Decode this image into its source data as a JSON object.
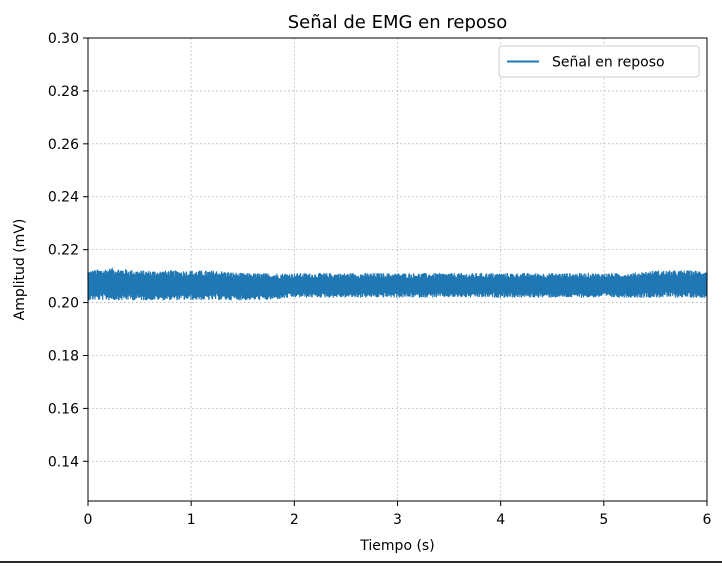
{
  "chart_data": {
    "type": "line",
    "title": "Señal de EMG en reposo",
    "xlabel": "Tiempo (s)",
    "ylabel": "Amplitud (mV)",
    "xlim": [
      0,
      6
    ],
    "ylim": [
      0.125,
      0.3
    ],
    "x_ticks": [
      0,
      1,
      2,
      3,
      4,
      5,
      6
    ],
    "y_ticks": [
      0.14,
      0.16,
      0.18,
      0.2,
      0.22,
      0.24,
      0.26,
      0.28,
      0.3
    ],
    "x_tick_labels": [
      "0",
      "1",
      "2",
      "3",
      "4",
      "5",
      "6"
    ],
    "y_tick_labels": [
      "0.14",
      "0.16",
      "0.18",
      "0.20",
      "0.22",
      "0.24",
      "0.26",
      "0.28",
      "0.30"
    ],
    "grid": true,
    "legend_position": "top-right",
    "series": [
      {
        "name": "Señal en reposo",
        "color": "#1f77b4",
        "x": [
          0.0,
          0.25,
          0.5,
          0.75,
          1.0,
          1.25,
          1.5,
          1.75,
          2.0,
          2.25,
          2.5,
          2.75,
          3.0,
          3.25,
          3.5,
          3.75,
          4.0,
          4.25,
          4.5,
          4.75,
          5.0,
          5.25,
          5.5,
          5.75,
          6.0
        ],
        "y_max": [
          0.212,
          0.213,
          0.212,
          0.212,
          0.212,
          0.212,
          0.211,
          0.211,
          0.211,
          0.211,
          0.211,
          0.211,
          0.211,
          0.211,
          0.211,
          0.211,
          0.211,
          0.211,
          0.211,
          0.211,
          0.211,
          0.211,
          0.212,
          0.212,
          0.212
        ],
        "y_min": [
          0.201,
          0.201,
          0.201,
          0.201,
          0.201,
          0.201,
          0.201,
          0.201,
          0.202,
          0.202,
          0.202,
          0.202,
          0.202,
          0.202,
          0.202,
          0.202,
          0.202,
          0.202,
          0.202,
          0.202,
          0.202,
          0.202,
          0.202,
          0.202,
          0.202
        ],
        "y_mean": 0.207
      }
    ]
  }
}
